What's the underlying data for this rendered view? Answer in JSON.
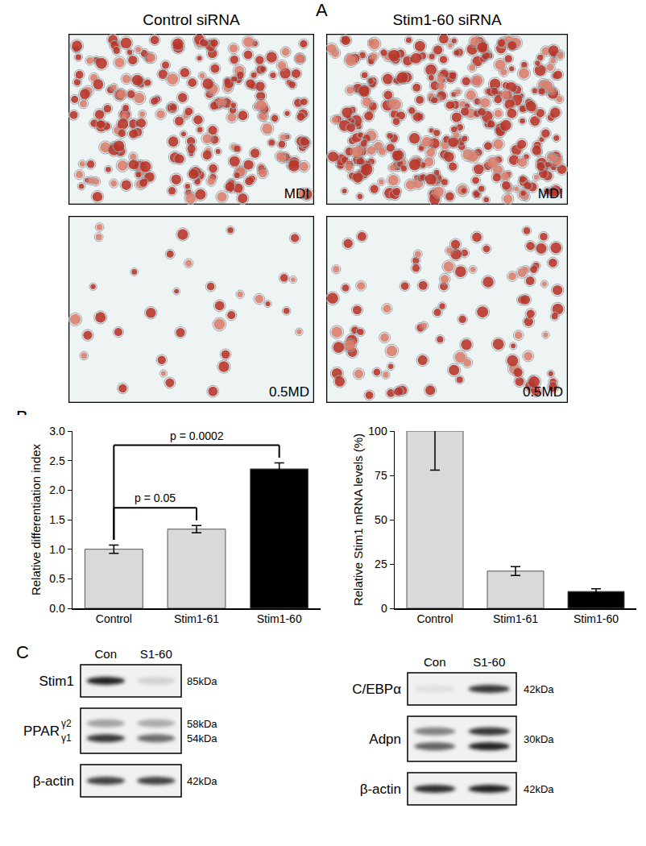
{
  "panels": {
    "A": {
      "label": "A",
      "columns": [
        "Control siRNA",
        "Stim1-60 siRNA"
      ],
      "rows": [
        "MDI",
        "0.5MD"
      ]
    },
    "B": {
      "label": "B"
    },
    "C": {
      "label": "C",
      "groups": [
        {
          "lanes": [
            "Con",
            "S1-60"
          ],
          "blots": [
            {
              "name": "Stim1",
              "sizes": [
                "85kDa"
              ]
            },
            {
              "name": "PPAR",
              "subnames": [
                "γ2",
                "γ1"
              ],
              "sizes": [
                "58kDa",
                "54kDa"
              ]
            },
            {
              "name": "β-actin",
              "sizes": [
                "42kDa"
              ]
            }
          ]
        },
        {
          "lanes": [
            "Con",
            "S1-60"
          ],
          "blots": [
            {
              "name": "C/EBPα",
              "sizes": [
                "42kDa"
              ]
            },
            {
              "name": "Adpn",
              "sizes": [
                "30kDa"
              ]
            },
            {
              "name": "β-actin",
              "sizes": [
                "42kDa"
              ]
            }
          ]
        }
      ]
    }
  },
  "chart_data": [
    {
      "type": "bar",
      "y_label": "Relative differentiation index",
      "categories": [
        "Control",
        "Stim1-61",
        "Stim1-60"
      ],
      "values": [
        1.0,
        1.34,
        2.36
      ],
      "errors": [
        0.07,
        0.06,
        0.1
      ],
      "colors": [
        "#d9d9d9",
        "#d9d9d9",
        "#000000"
      ],
      "ylim": [
        0,
        3
      ],
      "yticks": [
        {
          "value": 0,
          "label": "0.0"
        },
        {
          "value": 0.5,
          "label": "0.5"
        },
        {
          "value": 1,
          "label": "1.0"
        },
        {
          "value": 1.5,
          "label": "1.5"
        },
        {
          "value": 2,
          "label": "2.0"
        },
        {
          "value": 2.5,
          "label": "2.5"
        },
        {
          "value": 3,
          "label": "3.0"
        }
      ],
      "grid": false,
      "comparisons": [
        {
          "from": "Control",
          "to": "Stim1-61",
          "label": "p = 0.05"
        },
        {
          "from": "Control",
          "to": "Stim1-60",
          "label": "p = 0.0002"
        }
      ]
    },
    {
      "type": "bar",
      "y_label": "Relative Stim1 mRNA levels (%)",
      "categories": [
        "Control",
        "Stim1-61",
        "Stim1-60"
      ],
      "values": [
        100,
        21,
        9.5
      ],
      "errors": [
        22,
        2.5,
        1.5
      ],
      "colors": [
        "#d9d9d9",
        "#d9d9d9",
        "#000000"
      ],
      "ylim": [
        0,
        100
      ],
      "yticks": [
        0,
        25,
        50,
        75,
        100
      ],
      "grid": false
    }
  ]
}
